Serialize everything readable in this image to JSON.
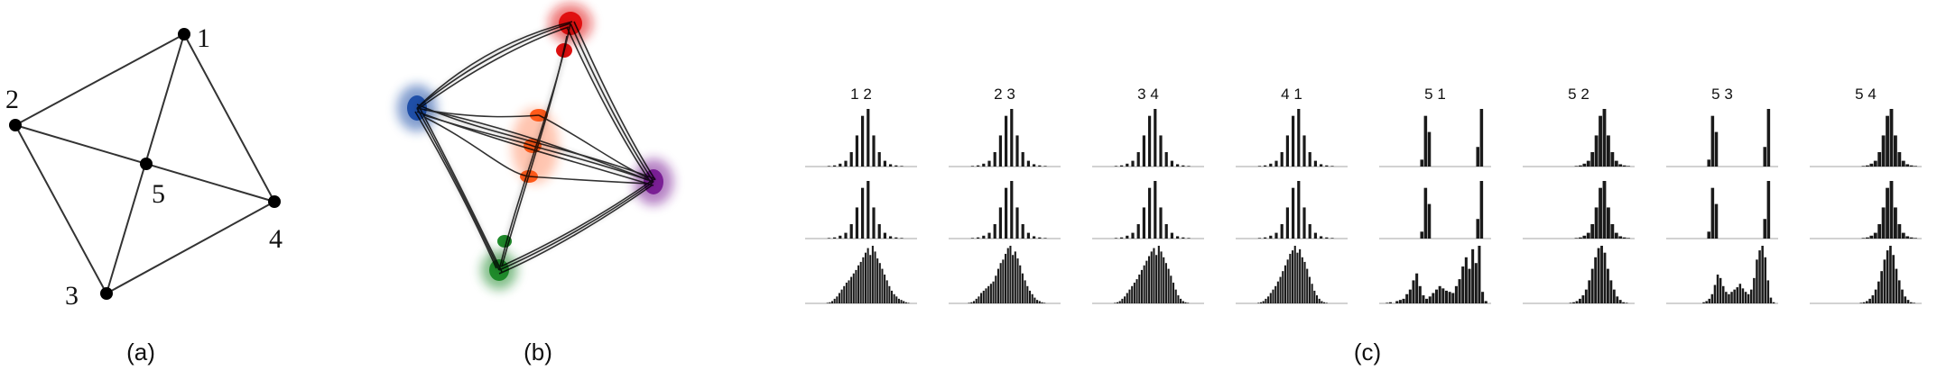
{
  "panels": {
    "a": {
      "caption": "(a)",
      "nodes": [
        {
          "id": "1",
          "label": "1"
        },
        {
          "id": "2",
          "label": "2"
        },
        {
          "id": "3",
          "label": "3"
        },
        {
          "id": "4",
          "label": "4"
        },
        {
          "id": "5",
          "label": "5"
        }
      ],
      "edges": [
        [
          "1",
          "2"
        ],
        [
          "1",
          "4"
        ],
        [
          "2",
          "3"
        ],
        [
          "3",
          "4"
        ],
        [
          "2",
          "4"
        ],
        [
          "1",
          "3"
        ]
      ]
    },
    "b": {
      "caption": "(b)",
      "colors": {
        "node1": "#e01010",
        "node2": "#1f4fa8",
        "node3": "#1f8a2a",
        "node4": "#7a1f95",
        "node5": "#ff5a1a",
        "bundle": "#000000"
      }
    },
    "c": {
      "caption": "(c)",
      "pairs": [
        "1 2",
        "2 3",
        "3 4",
        "4 1",
        "5 1",
        "5 2",
        "5 3",
        "5 4"
      ],
      "histograms": [
        [
          [
            0,
            0,
            0,
            0,
            1,
            2,
            5,
            10,
            25,
            54,
            88,
            100,
            54,
            25,
            10,
            4,
            2,
            1,
            0,
            0
          ],
          [
            0,
            0,
            0,
            0,
            1,
            2,
            5,
            10,
            25,
            54,
            88,
            100,
            54,
            25,
            10,
            4,
            2,
            1,
            0,
            0
          ],
          [
            0,
            0,
            0,
            0,
            0,
            0,
            0,
            0,
            0,
            1,
            2,
            4,
            8,
            12,
            18,
            24,
            30,
            36,
            40,
            46,
            52,
            58,
            66,
            72,
            80,
            88,
            96,
            84,
            100,
            90,
            78,
            70,
            60,
            50,
            40,
            30,
            22,
            16,
            12,
            8,
            6,
            4,
            2,
            1,
            0,
            0,
            0
          ]
        ],
        [
          [
            0,
            0,
            0,
            0,
            1,
            2,
            5,
            10,
            25,
            54,
            88,
            100,
            54,
            25,
            10,
            4,
            2,
            1,
            0,
            0
          ],
          [
            0,
            0,
            0,
            0,
            1,
            2,
            5,
            10,
            25,
            54,
            88,
            100,
            54,
            25,
            10,
            4,
            2,
            1,
            0,
            0
          ],
          [
            0,
            0,
            0,
            0,
            0,
            0,
            0,
            0,
            1,
            2,
            4,
            8,
            12,
            18,
            22,
            26,
            30,
            34,
            38,
            48,
            60,
            70,
            76,
            86,
            96,
            100,
            84,
            90,
            78,
            66,
            52,
            40,
            30,
            22,
            16,
            10,
            6,
            4,
            2,
            1,
            0,
            0,
            0,
            0,
            0,
            0
          ]
        ],
        [
          [
            0,
            0,
            0,
            0,
            1,
            2,
            5,
            10,
            25,
            54,
            88,
            100,
            54,
            25,
            10,
            4,
            2,
            1,
            0,
            0
          ],
          [
            0,
            0,
            0,
            0,
            1,
            2,
            5,
            10,
            25,
            54,
            88,
            100,
            54,
            25,
            10,
            4,
            2,
            1,
            0,
            0
          ],
          [
            0,
            0,
            0,
            0,
            0,
            0,
            0,
            0,
            0,
            1,
            2,
            4,
            8,
            12,
            18,
            24,
            30,
            36,
            42,
            50,
            58,
            66,
            74,
            82,
            90,
            96,
            84,
            100,
            90,
            80,
            70,
            60,
            48,
            36,
            24,
            14,
            8,
            4,
            2,
            1,
            0,
            0,
            0,
            0,
            0,
            0
          ]
        ],
        [
          [
            0,
            0,
            0,
            0,
            1,
            2,
            5,
            10,
            25,
            54,
            88,
            100,
            54,
            25,
            10,
            4,
            2,
            1,
            0,
            0
          ],
          [
            0,
            0,
            0,
            0,
            1,
            2,
            5,
            10,
            25,
            54,
            88,
            100,
            54,
            25,
            10,
            4,
            2,
            1,
            0,
            0
          ],
          [
            0,
            0,
            0,
            0,
            0,
            0,
            0,
            0,
            0,
            1,
            2,
            4,
            8,
            12,
            18,
            24,
            30,
            38,
            46,
            56,
            66,
            76,
            86,
            92,
            100,
            88,
            94,
            80,
            72,
            60,
            46,
            34,
            22,
            14,
            8,
            4,
            2,
            1,
            0,
            0,
            0,
            0,
            0,
            0,
            0,
            0
          ]
        ],
        [
          [
            0,
            0,
            0,
            0,
            0,
            0,
            0,
            0,
            0,
            0,
            0,
            12,
            88,
            60,
            0,
            0,
            0,
            0,
            0,
            0,
            0,
            0,
            0,
            0,
            0,
            0,
            34,
            100,
            0,
            0
          ],
          [
            0,
            0,
            0,
            0,
            0,
            0,
            0,
            0,
            0,
            0,
            0,
            12,
            88,
            60,
            0,
            0,
            0,
            0,
            0,
            0,
            0,
            0,
            0,
            0,
            0,
            0,
            34,
            100,
            0,
            0
          ],
          [
            0,
            0,
            1,
            2,
            0,
            4,
            6,
            8,
            16,
            24,
            40,
            52,
            30,
            14,
            8,
            12,
            18,
            24,
            30,
            26,
            22,
            20,
            18,
            30,
            42,
            64,
            80,
            60,
            94,
            70,
            100,
            20,
            4,
            0
          ]
        ],
        [
          [
            0,
            0,
            0,
            0,
            0,
            0,
            0,
            0,
            0,
            0,
            0,
            0,
            0,
            1,
            2,
            5,
            10,
            25,
            54,
            88,
            100,
            54,
            25,
            10,
            4,
            2,
            1,
            0
          ],
          [
            0,
            0,
            0,
            0,
            0,
            0,
            0,
            0,
            0,
            0,
            0,
            0,
            0,
            1,
            2,
            5,
            10,
            25,
            54,
            88,
            100,
            54,
            25,
            10,
            4,
            2,
            1,
            0
          ],
          [
            0,
            0,
            0,
            0,
            0,
            0,
            0,
            0,
            0,
            0,
            0,
            0,
            0,
            0,
            0,
            1,
            2,
            4,
            8,
            14,
            24,
            40,
            60,
            80,
            96,
            100,
            88,
            60,
            40,
            24,
            12,
            6,
            2,
            1,
            0,
            0
          ]
        ],
        [
          [
            0,
            0,
            0,
            0,
            0,
            0,
            0,
            0,
            0,
            0,
            0,
            12,
            88,
            60,
            0,
            0,
            0,
            0,
            0,
            0,
            0,
            0,
            0,
            0,
            0,
            0,
            34,
            100,
            0,
            0
          ],
          [
            0,
            0,
            0,
            0,
            0,
            0,
            0,
            0,
            0,
            0,
            0,
            12,
            88,
            60,
            0,
            0,
            0,
            0,
            0,
            0,
            0,
            0,
            0,
            0,
            0,
            0,
            34,
            100,
            0,
            0
          ],
          [
            0,
            0,
            0,
            0,
            0,
            0,
            0,
            0,
            0,
            0,
            0,
            0,
            0,
            2,
            4,
            8,
            16,
            32,
            50,
            44,
            30,
            20,
            16,
            20,
            24,
            28,
            34,
            26,
            20,
            16,
            24,
            44,
            76,
            92,
            100,
            80,
            40,
            10,
            2,
            0
          ]
        ],
        [
          [
            0,
            0,
            0,
            0,
            0,
            0,
            0,
            0,
            0,
            0,
            0,
            0,
            0,
            1,
            2,
            5,
            10,
            25,
            54,
            88,
            100,
            54,
            25,
            10,
            4,
            2,
            1,
            0
          ],
          [
            0,
            0,
            0,
            0,
            0,
            0,
            0,
            0,
            0,
            0,
            0,
            0,
            0,
            1,
            2,
            5,
            10,
            25,
            54,
            88,
            100,
            54,
            25,
            10,
            4,
            2,
            1,
            0
          ],
          [
            0,
            0,
            0,
            0,
            0,
            0,
            0,
            0,
            0,
            0,
            0,
            0,
            0,
            0,
            0,
            0,
            0,
            1,
            2,
            4,
            8,
            14,
            24,
            38,
            56,
            76,
            92,
            100,
            84,
            60,
            40,
            24,
            12,
            6,
            2,
            1,
            0,
            0
          ]
        ]
      ]
    }
  }
}
